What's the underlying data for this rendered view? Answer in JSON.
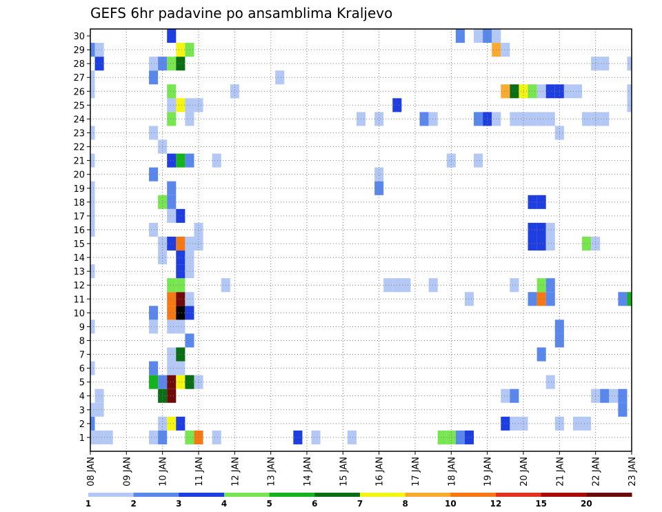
{
  "chart_data": {
    "type": "heatmap",
    "title": "GEFS 6hr padavine po ansamblima Kraljevo",
    "x_start_day": 8,
    "x_tick_labels": [
      "08 JAN",
      "09 JAN",
      "10 JAN",
      "11 JAN",
      "12 JAN",
      "13 JAN",
      "14 JAN",
      "15 JAN",
      "16 JAN",
      "17 JAN",
      "18 JAN",
      "19 JAN",
      "20 JAN",
      "21 JAN",
      "22 JAN",
      "23 JAN"
    ],
    "y_tick_labels": [
      "1",
      "2",
      "3",
      "4",
      "5",
      "6",
      "7",
      "8",
      "9",
      "10",
      "11",
      "12",
      "13",
      "14",
      "15",
      "16",
      "17",
      "18",
      "19",
      "20",
      "21",
      "22",
      "23",
      "24",
      "25",
      "26",
      "27",
      "28",
      "29",
      "30"
    ],
    "ylim": [
      0,
      30
    ],
    "xlim_steps": [
      0,
      60
    ],
    "grid": true,
    "colorbar": {
      "labels": [
        "1",
        "2",
        "3",
        "4",
        "5",
        "6",
        "7",
        "8",
        "10",
        "12",
        "15",
        "20"
      ],
      "colors": [
        "#b4c8f5",
        "#5a87eb",
        "#1e3ee0",
        "#78e650",
        "#14b41e",
        "#0a6e14",
        "#f5f514",
        "#faaa32",
        "#f57814",
        "#e1321e",
        "#aa0a0a",
        "#6e0a0a"
      ]
    },
    "cells_member_step_level": [
      [
        1,
        0,
        1
      ],
      [
        1,
        1,
        1
      ],
      [
        1,
        2,
        1
      ],
      [
        1,
        7,
        1
      ],
      [
        1,
        8,
        2
      ],
      [
        1,
        11,
        4
      ],
      [
        1,
        12,
        9
      ],
      [
        1,
        14,
        1
      ],
      [
        1,
        23,
        3
      ],
      [
        1,
        25,
        1
      ],
      [
        1,
        29,
        1
      ],
      [
        1,
        39,
        4
      ],
      [
        1,
        40,
        4
      ],
      [
        1,
        41,
        2
      ],
      [
        1,
        42,
        3
      ],
      [
        2,
        0,
        2
      ],
      [
        2,
        8,
        1
      ],
      [
        2,
        9,
        7
      ],
      [
        2,
        10,
        3
      ],
      [
        2,
        46,
        3
      ],
      [
        2,
        47,
        1
      ],
      [
        2,
        48,
        1
      ],
      [
        2,
        52,
        1
      ],
      [
        2,
        54,
        1
      ],
      [
        2,
        55,
        1
      ],
      [
        3,
        0,
        1
      ],
      [
        3,
        1,
        1
      ],
      [
        3,
        59,
        2
      ],
      [
        4,
        1,
        1
      ],
      [
        4,
        8,
        6
      ],
      [
        4,
        9,
        12
      ],
      [
        4,
        46,
        1
      ],
      [
        4,
        47,
        2
      ],
      [
        4,
        56,
        1
      ],
      [
        4,
        57,
        2
      ],
      [
        4,
        58,
        1
      ],
      [
        4,
        59,
        2
      ],
      [
        5,
        7,
        5
      ],
      [
        5,
        8,
        2
      ],
      [
        5,
        9,
        12
      ],
      [
        5,
        10,
        7
      ],
      [
        5,
        11,
        6
      ],
      [
        5,
        12,
        1
      ],
      [
        5,
        51,
        1
      ],
      [
        6,
        0,
        1
      ],
      [
        6,
        7,
        2
      ],
      [
        6,
        9,
        1
      ],
      [
        6,
        10,
        1
      ],
      [
        7,
        9,
        1
      ],
      [
        7,
        10,
        6
      ],
      [
        7,
        50,
        2
      ],
      [
        8,
        11,
        2
      ],
      [
        8,
        52,
        2
      ],
      [
        9,
        0,
        1
      ],
      [
        9,
        7,
        1
      ],
      [
        9,
        9,
        1
      ],
      [
        9,
        10,
        1
      ],
      [
        9,
        52,
        2
      ],
      [
        10,
        7,
        2
      ],
      [
        10,
        9,
        9
      ],
      [
        10,
        10,
        13
      ],
      [
        10,
        11,
        3
      ],
      [
        11,
        9,
        9
      ],
      [
        11,
        10,
        12
      ],
      [
        11,
        11,
        1
      ],
      [
        11,
        42,
        1
      ],
      [
        11,
        49,
        2
      ],
      [
        11,
        50,
        9
      ],
      [
        11,
        51,
        2
      ],
      [
        11,
        59,
        2
      ],
      [
        11,
        60,
        5
      ],
      [
        12,
        9,
        4
      ],
      [
        12,
        10,
        4
      ],
      [
        12,
        15,
        1
      ],
      [
        12,
        33,
        1
      ],
      [
        12,
        34,
        1
      ],
      [
        12,
        35,
        1
      ],
      [
        12,
        38,
        1
      ],
      [
        12,
        47,
        1
      ],
      [
        12,
        50,
        4
      ],
      [
        12,
        51,
        2
      ],
      [
        13,
        0,
        1
      ],
      [
        13,
        10,
        3
      ],
      [
        13,
        11,
        1
      ],
      [
        14,
        8,
        1
      ],
      [
        14,
        10,
        3
      ],
      [
        14,
        11,
        1
      ],
      [
        15,
        8,
        1
      ],
      [
        15,
        9,
        3
      ],
      [
        15,
        10,
        9
      ],
      [
        15,
        11,
        1
      ],
      [
        15,
        12,
        1
      ],
      [
        15,
        49,
        3
      ],
      [
        15,
        50,
        3
      ],
      [
        15,
        51,
        1
      ],
      [
        15,
        55,
        4
      ],
      [
        15,
        56,
        1
      ],
      [
        16,
        0,
        1
      ],
      [
        16,
        7,
        1
      ],
      [
        16,
        12,
        1
      ],
      [
        16,
        49,
        3
      ],
      [
        16,
        50,
        3
      ],
      [
        16,
        51,
        1
      ],
      [
        17,
        0,
        1
      ],
      [
        17,
        9,
        1
      ],
      [
        17,
        10,
        3
      ],
      [
        18,
        0,
        1
      ],
      [
        18,
        8,
        4
      ],
      [
        18,
        9,
        2
      ],
      [
        18,
        49,
        3
      ],
      [
        18,
        50,
        3
      ],
      [
        19,
        0,
        1
      ],
      [
        19,
        9,
        2
      ],
      [
        19,
        32,
        2
      ],
      [
        20,
        7,
        2
      ],
      [
        20,
        32,
        1
      ],
      [
        21,
        0,
        1
      ],
      [
        21,
        9,
        3
      ],
      [
        21,
        10,
        5
      ],
      [
        21,
        11,
        2
      ],
      [
        21,
        14,
        1
      ],
      [
        21,
        40,
        1
      ],
      [
        21,
        43,
        1
      ],
      [
        22,
        8,
        1
      ],
      [
        23,
        0,
        1
      ],
      [
        23,
        7,
        1
      ],
      [
        23,
        52,
        1
      ],
      [
        24,
        9,
        4
      ],
      [
        24,
        11,
        1
      ],
      [
        24,
        30,
        1
      ],
      [
        24,
        32,
        1
      ],
      [
        24,
        37,
        2
      ],
      [
        24,
        38,
        1
      ],
      [
        24,
        43,
        2
      ],
      [
        24,
        44,
        3
      ],
      [
        24,
        45,
        1
      ],
      [
        24,
        47,
        1
      ],
      [
        24,
        48,
        1
      ],
      [
        24,
        49,
        1
      ],
      [
        24,
        50,
        1
      ],
      [
        24,
        51,
        1
      ],
      [
        24,
        55,
        1
      ],
      [
        24,
        56,
        1
      ],
      [
        24,
        57,
        1
      ],
      [
        25,
        9,
        1
      ],
      [
        25,
        10,
        7
      ],
      [
        25,
        11,
        1
      ],
      [
        25,
        12,
        1
      ],
      [
        25,
        34,
        3
      ],
      [
        25,
        60,
        1
      ],
      [
        26,
        0,
        1
      ],
      [
        26,
        9,
        4
      ],
      [
        26,
        16,
        1
      ],
      [
        26,
        46,
        8
      ],
      [
        26,
        47,
        6
      ],
      [
        26,
        48,
        7
      ],
      [
        26,
        49,
        4
      ],
      [
        26,
        50,
        1
      ],
      [
        26,
        51,
        3
      ],
      [
        26,
        52,
        3
      ],
      [
        26,
        53,
        1
      ],
      [
        26,
        54,
        1
      ],
      [
        26,
        60,
        1
      ],
      [
        27,
        0,
        1
      ],
      [
        27,
        7,
        2
      ],
      [
        27,
        21,
        1
      ],
      [
        28,
        1,
        3
      ],
      [
        28,
        7,
        1
      ],
      [
        28,
        8,
        2
      ],
      [
        28,
        9,
        4
      ],
      [
        28,
        10,
        6
      ],
      [
        28,
        56,
        1
      ],
      [
        28,
        57,
        1
      ],
      [
        28,
        60,
        1
      ],
      [
        29,
        0,
        2
      ],
      [
        29,
        1,
        1
      ],
      [
        29,
        10,
        7
      ],
      [
        29,
        11,
        4
      ],
      [
        29,
        45,
        8
      ],
      [
        29,
        46,
        1
      ],
      [
        30,
        9,
        3
      ],
      [
        30,
        41,
        2
      ],
      [
        30,
        43,
        1
      ],
      [
        30,
        44,
        2
      ],
      [
        30,
        45,
        1
      ]
    ]
  }
}
